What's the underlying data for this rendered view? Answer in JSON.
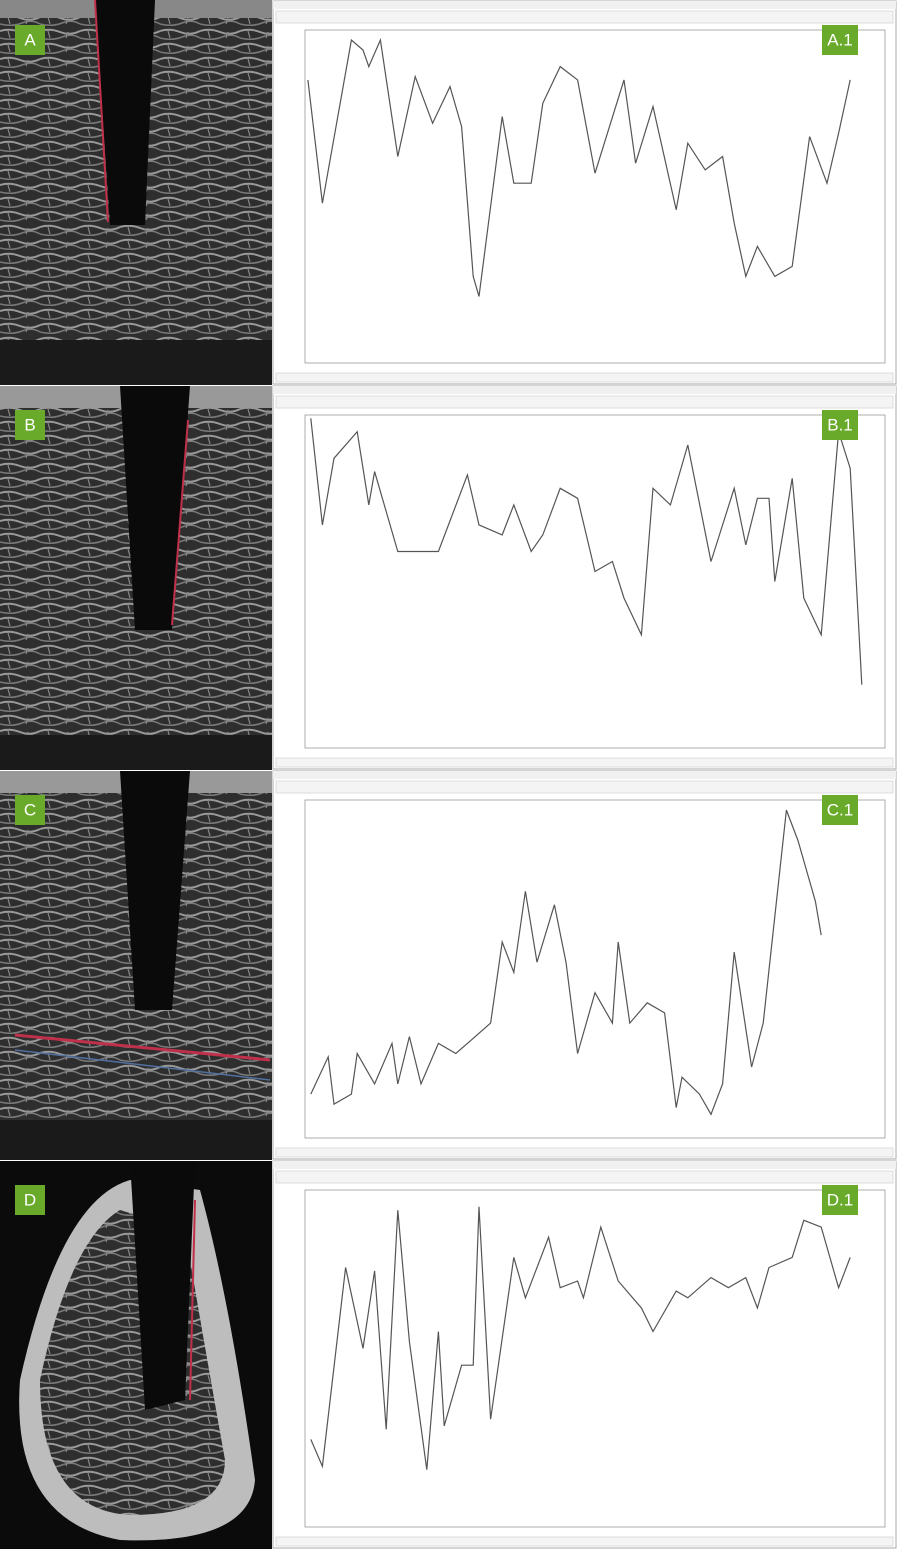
{
  "image_labels": [
    "A",
    "B",
    "C",
    "D"
  ],
  "chart_data": [
    {
      "type": "line",
      "title": "A.1",
      "color": "#555555",
      "xlim": [
        0,
        100
      ],
      "ylim": [
        0,
        100
      ],
      "x": [
        0.5,
        3,
        8,
        10,
        11,
        13,
        16,
        19,
        22,
        25,
        27,
        29,
        30,
        34,
        36,
        39,
        41,
        44,
        47,
        50,
        55,
        57,
        60,
        64,
        66,
        69,
        72,
        74,
        76,
        78,
        81,
        84,
        87,
        90,
        92,
        94
      ],
      "values": [
        85,
        48,
        97,
        94,
        89,
        97,
        62,
        86,
        72,
        83,
        71,
        26,
        20,
        74,
        54,
        54,
        78,
        89,
        85,
        57,
        85,
        60,
        77,
        46,
        66,
        58,
        62,
        42,
        26,
        35,
        26,
        29,
        68,
        54,
        69,
        85
      ]
    },
    {
      "type": "line",
      "title": "B.1",
      "color": "#555555",
      "xlim": [
        0,
        100
      ],
      "ylim": [
        0,
        100
      ],
      "x": [
        1,
        3,
        5,
        9,
        11,
        12,
        16,
        20,
        23,
        28,
        30,
        34,
        36,
        39,
        41,
        44,
        47,
        50,
        53,
        55,
        58,
        60,
        63,
        66,
        70,
        74,
        76,
        78,
        80,
        81,
        84,
        86,
        89,
        92,
        94,
        96
      ],
      "values": [
        99,
        67,
        87,
        95,
        73,
        83,
        59,
        59,
        59,
        82,
        67,
        64,
        73,
        59,
        64,
        78,
        75,
        53,
        56,
        45,
        34,
        78,
        73,
        91,
        56,
        78,
        61,
        75,
        75,
        50,
        81,
        45,
        34,
        95,
        84,
        19
      ]
    },
    {
      "type": "line",
      "title": "C.1",
      "color": "#555555",
      "xlim": [
        0,
        100
      ],
      "ylim": [
        0,
        100
      ],
      "x": [
        1,
        4,
        5,
        8,
        9,
        12,
        15,
        16,
        18,
        20,
        23,
        26,
        28,
        32,
        34,
        36,
        38,
        40,
        43,
        45,
        47,
        50,
        53,
        54,
        56,
        59,
        62,
        64,
        65,
        68,
        70,
        72,
        74,
        77,
        79,
        83,
        85,
        88,
        89
      ],
      "values": [
        13,
        24,
        10,
        13,
        25,
        16,
        28,
        16,
        30,
        16,
        28,
        25,
        28,
        34,
        58,
        49,
        73,
        52,
        69,
        52,
        25,
        43,
        34,
        58,
        34,
        40,
        37,
        9,
        18,
        13,
        7,
        16,
        55,
        21,
        34,
        97,
        88,
        70,
        60
      ]
    },
    {
      "type": "line",
      "title": "D.1",
      "color": "#555555",
      "xlim": [
        0,
        100
      ],
      "ylim": [
        0,
        100
      ],
      "x": [
        1,
        3,
        7,
        10,
        12,
        14,
        16,
        18,
        21,
        23,
        24,
        27,
        29,
        30,
        32,
        36,
        38,
        42,
        44,
        47,
        48,
        51,
        54,
        58,
        60,
        64,
        66,
        70,
        73,
        76,
        78,
        80,
        84,
        86,
        89,
        92,
        94
      ],
      "values": [
        26,
        18,
        77,
        53,
        76,
        29,
        94,
        55,
        17,
        58,
        30,
        48,
        48,
        95,
        32,
        80,
        68,
        86,
        71,
        73,
        68,
        89,
        73,
        65,
        58,
        70,
        68,
        74,
        71,
        74,
        65,
        77,
        80,
        91,
        89,
        71,
        80
      ]
    }
  ]
}
